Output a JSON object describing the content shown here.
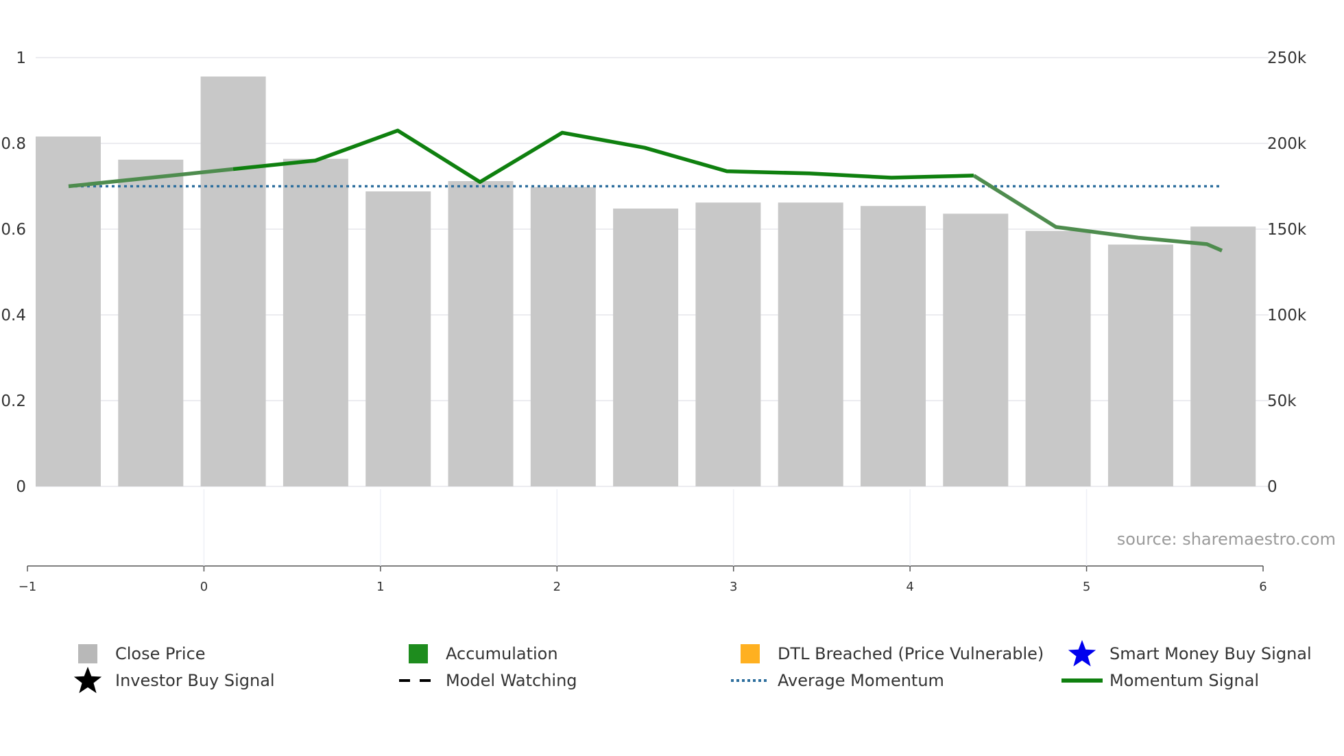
{
  "chart_data": {
    "type": "bar+line",
    "title": "",
    "source": "source: sharemaestro.com",
    "categories": [
      "",
      "",
      "",
      "",
      "",
      "",
      "",
      "",
      "",
      "",
      "",
      "",
      "",
      "",
      ""
    ],
    "close_price": {
      "name": "Close Price",
      "axis": "right",
      "values": [
        204000,
        190500,
        239000,
        191000,
        172000,
        178000,
        174500,
        162000,
        165500,
        165500,
        163500,
        159000,
        149000,
        141000,
        151500
      ]
    },
    "momentum_signal": {
      "name": "Momentum Signal",
      "axis": "left",
      "values": [
        0.7,
        0.72,
        0.74,
        0.76,
        0.83,
        0.71,
        0.825,
        0.79,
        0.735,
        0.73,
        0.72,
        0.725,
        0.605,
        0.58,
        0.565,
        0.55
      ],
      "x_index": [
        0,
        0.85,
        2,
        2.95,
        4.05,
        4.9,
        6.0,
        7.0,
        8.25,
        9.3,
        10.4,
        11.45,
        12.5,
        13.65,
        14.5,
        14.8
      ]
    },
    "average_momentum": {
      "name": "Average Momentum",
      "value": 0.7
    },
    "left_axis": {
      "ylim": [
        0,
        1
      ],
      "ticks": [
        "0",
        "0.2",
        "0.4",
        "0.6",
        "0.8",
        "1"
      ]
    },
    "right_axis": {
      "ylim": [
        0,
        250000
      ],
      "ticks": [
        "0",
        "50k",
        "100k",
        "150k",
        "200k",
        "250k"
      ]
    },
    "x_axis": {
      "xlim": [
        -1,
        6
      ],
      "ticks": [
        "−1",
        "0",
        "1",
        "2",
        "3",
        "4",
        "5",
        "6"
      ]
    },
    "colors": {
      "bar": "#c8c8c8",
      "momentum": "#0f800f",
      "momentum_faded": "#4e8c4e",
      "average": "#2e6f9e",
      "grid": "#ececf0"
    }
  },
  "legend": {
    "items": [
      {
        "label": "Close Price",
        "symbol": "square",
        "color": "#b8b8b8"
      },
      {
        "label": "Accumulation",
        "symbol": "square",
        "color": "#1e8c1e"
      },
      {
        "label": "DTL Breached (Price Vulnerable)",
        "symbol": "square",
        "color": "#ffb020"
      },
      {
        "label": "Smart Money Buy Signal",
        "symbol": "star",
        "color": "#0000ee"
      },
      {
        "label": "Investor Buy Signal",
        "symbol": "star",
        "color": "#000000"
      },
      {
        "label": "Model Watching",
        "symbol": "dash",
        "color": "#000000"
      },
      {
        "label": "Average Momentum",
        "symbol": "dot",
        "color": "#2e6f9e"
      },
      {
        "label": "Momentum Signal",
        "symbol": "line",
        "color": "#0f800f"
      }
    ]
  }
}
